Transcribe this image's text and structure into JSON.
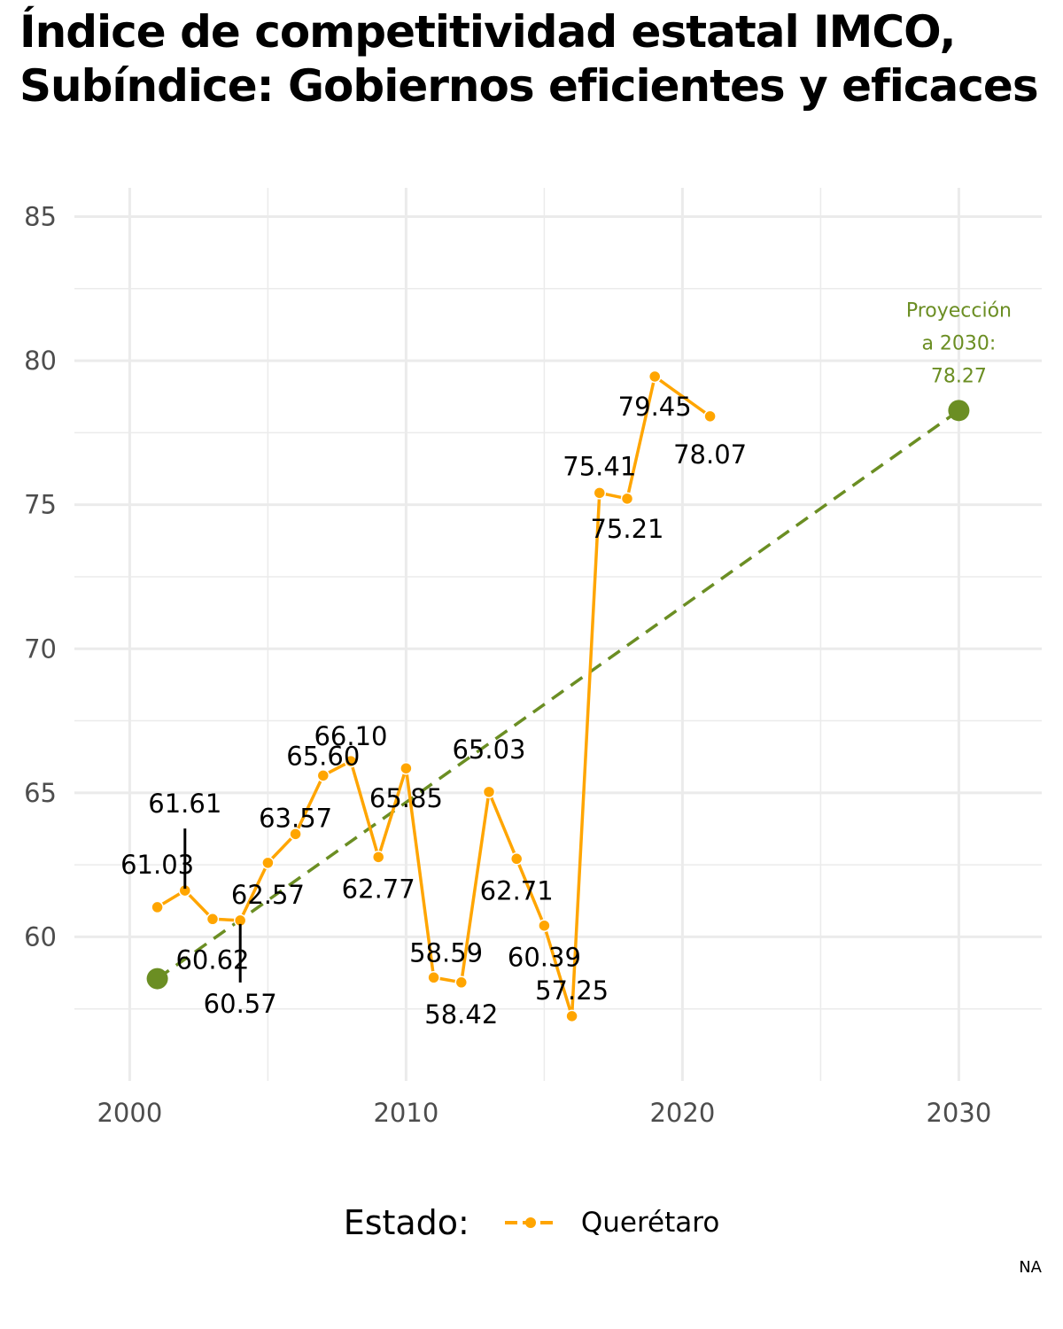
{
  "title": "Índice de competitividad estatal IMCO, Subíndice: Gobiernos eficientes y eficaces",
  "caption": "NA",
  "legend": {
    "title": "Estado:",
    "label": "Querétaro"
  },
  "colors": {
    "series": "#FFA500",
    "projection": "#6B8E23",
    "grid": "#EBEBEB",
    "label": "#000000",
    "axis_text": "#4D4D4D"
  },
  "chart_data": {
    "type": "line",
    "title": "Índice de competitividad estatal IMCO, Subíndice: Gobiernos eficientes y eficaces",
    "xlabel": "",
    "ylabel": "",
    "xlim": [
      1998,
      2033
    ],
    "ylim": [
      55,
      86
    ],
    "x_ticks": [
      2000,
      2010,
      2020,
      2030
    ],
    "y_ticks": [
      60,
      65,
      70,
      75,
      80,
      85
    ],
    "grid": true,
    "legend_position": "bottom",
    "series": [
      {
        "name": "Querétaro",
        "x": [
          2001,
          2002,
          2003,
          2004,
          2005,
          2006,
          2007,
          2008,
          2009,
          2010,
          2011,
          2012,
          2013,
          2014,
          2015,
          2016,
          2017,
          2018,
          2019,
          2021
        ],
        "values": [
          61.03,
          61.61,
          60.62,
          60.57,
          62.57,
          63.57,
          65.6,
          66.1,
          62.77,
          65.85,
          58.59,
          58.42,
          65.03,
          62.71,
          60.39,
          57.25,
          75.41,
          75.21,
          79.45,
          78.07
        ],
        "labels": [
          "61.03",
          "61.61",
          "60.62",
          "60.57",
          "62.57",
          "63.57",
          "65.60",
          "66.10",
          "62.77",
          "65.85",
          "58.59",
          "58.42",
          "65.03",
          "62.71",
          "60.39",
          "57.25",
          "75.41",
          "75.21",
          "79.45",
          "78.07"
        ]
      }
    ],
    "projection": {
      "x": [
        2001,
        2030
      ],
      "values": [
        58.55,
        78.27
      ],
      "label_lines": [
        "Proyección",
        "a 2030:",
        "78.27"
      ]
    }
  }
}
